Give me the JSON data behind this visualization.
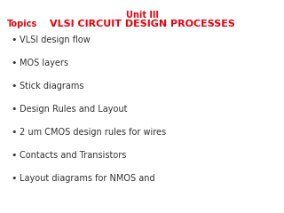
{
  "title_line1": "Unit III",
  "title_line2": "VLSI CIRCUIT DESIGN PROCESSES",
  "title_color": "#e8000a",
  "topics_label": "Topics",
  "topics_color": "#e8000a",
  "topics_fontsize": 7,
  "title_fontsize1": 7,
  "title_fontsize2": 8,
  "bullet_items": [
    "VLSI design flow",
    "MOS layers",
    "Stick diagrams",
    "Design Rules and Layout",
    "2 um CMOS design rules for wires",
    "Contacts and Transistors",
    "Layout diagrams for NMOS and"
  ],
  "bullet_color": "#333333",
  "bullet_fontsize": 7,
  "background_color": "#ffffff"
}
